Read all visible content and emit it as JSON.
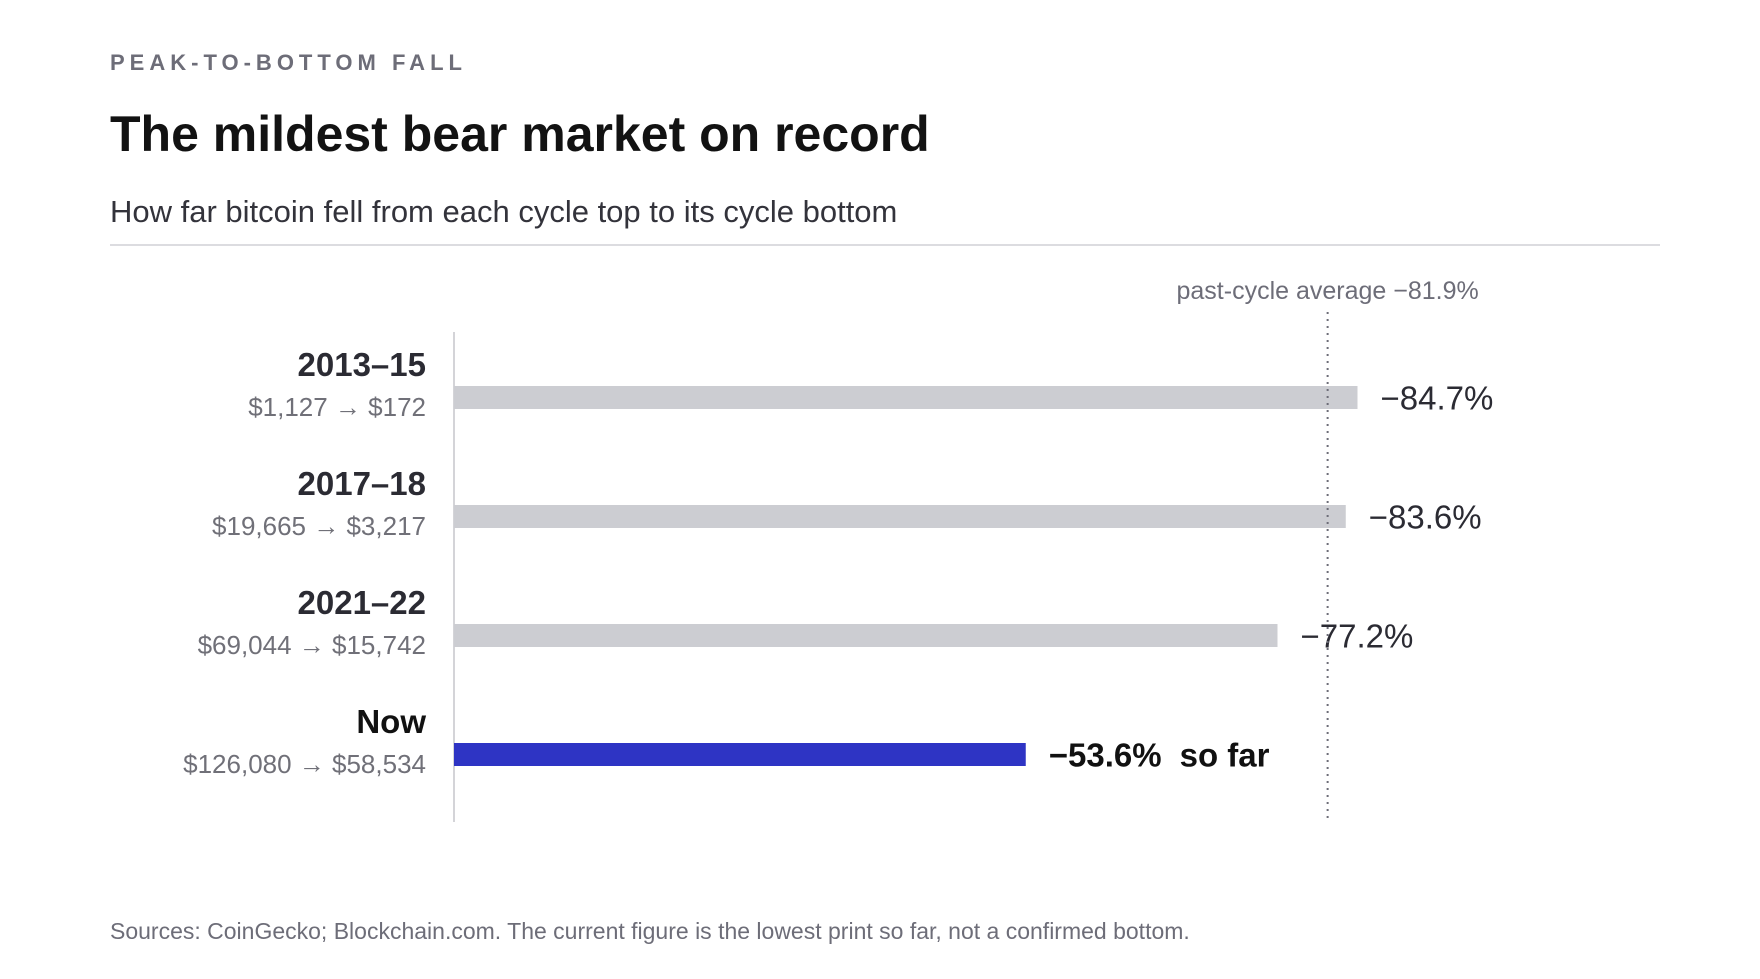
{
  "header": {
    "eyebrow": "PEAK-TO-BOTTOM FALL",
    "title": "The mildest bear market on record",
    "subtitle": "How far bitcoin fell from each cycle top to its cycle bottom"
  },
  "chart_data": {
    "type": "bar",
    "orientation": "horizontal",
    "categories": [
      "2013–15",
      "2017–18",
      "2021–22",
      "Now"
    ],
    "sublabels": [
      "$1,127 → $172",
      "$19,665 → $3,217",
      "$69,044 → $15,742",
      "$126,080 → $58,534"
    ],
    "values": [
      -84.7,
      -83.6,
      -77.2,
      -53.6
    ],
    "value_labels": [
      "−84.7%",
      "−83.6%",
      "−77.2%",
      "−53.6%"
    ],
    "value_suffixes": [
      "",
      "",
      "",
      "so far"
    ],
    "highlight_index": 3,
    "reference_line": {
      "value": -81.9,
      "label": "past-cycle average −81.9%",
      "style": "dotted"
    },
    "xlim": [
      0,
      -100
    ],
    "grid": false,
    "colors": {
      "bar": "#cccdd2",
      "highlight": "#2e34c4",
      "reference": "#6d6d78"
    }
  },
  "footer": {
    "source": "Sources: CoinGecko; Blockchain.com. The current figure is the lowest print so far, not a confirmed bottom."
  }
}
